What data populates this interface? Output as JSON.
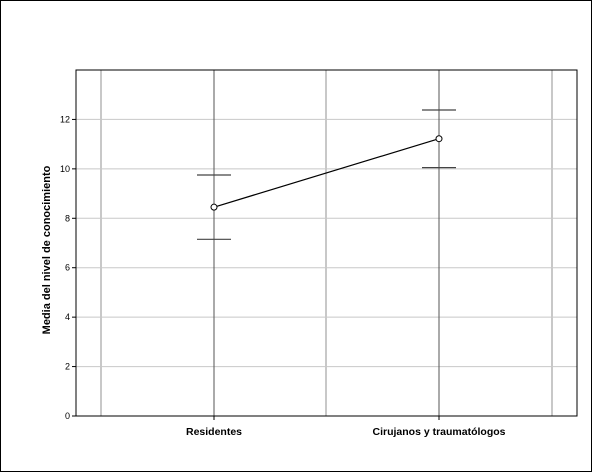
{
  "chart_data": {
    "type": "line",
    "categories": [
      "Residentes",
      "Cirujanos y traumatólogos"
    ],
    "values": [
      8.45,
      11.22
    ],
    "error_bars": [
      {
        "lower": 7.15,
        "upper": 9.75
      },
      {
        "lower": 10.05,
        "upper": 12.38
      }
    ],
    "ylabel": "Media del nivel de conocimiento",
    "xlabel": "",
    "ylim": [
      0,
      14
    ],
    "yticks": [
      "0",
      "2",
      "4",
      "6",
      "8",
      "10",
      "12"
    ],
    "grid": true,
    "colors": {
      "line": "#000000",
      "grid": "#c8c8c8",
      "errorbar": "#444444"
    }
  }
}
